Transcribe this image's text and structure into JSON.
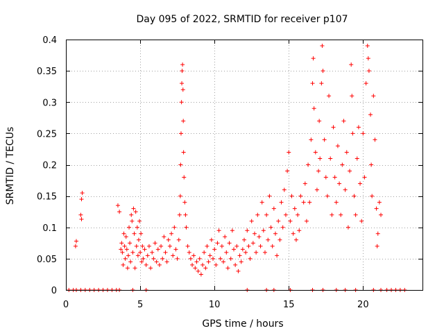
{
  "chart_data": {
    "type": "scatter",
    "title": "Day 095 of 2022, SRMTID for receiver p107",
    "xlabel": "GPS time / hours",
    "ylabel": "SRMTID / TECUs",
    "xlim": [
      0,
      24
    ],
    "ylim": [
      0,
      0.4
    ],
    "xticks": [
      0,
      5,
      10,
      15,
      20
    ],
    "xtick_labels": [
      "0",
      "5",
      "10",
      "15",
      "20"
    ],
    "yticks": [
      0,
      0.05,
      0.1,
      0.15,
      0.2,
      0.25,
      0.3,
      0.35,
      0.4
    ],
    "ytick_labels": [
      "0",
      "0.05",
      "0.1",
      "0.15",
      "0.2",
      "0.25",
      "0.3",
      "0.35",
      "0.4"
    ],
    "grid": true,
    "marker": "plus",
    "color": "#ff0000",
    "series": [
      {
        "name": "SRMTID",
        "points": [
          [
            0.2,
            0
          ],
          [
            0.5,
            0
          ],
          [
            0.7,
            0
          ],
          [
            1.0,
            0
          ],
          [
            1.3,
            0
          ],
          [
            1.6,
            0
          ],
          [
            1.9,
            0
          ],
          [
            2.2,
            0
          ],
          [
            2.5,
            0
          ],
          [
            2.8,
            0
          ],
          [
            3.1,
            0
          ],
          [
            3.4,
            0
          ],
          [
            3.6,
            0
          ],
          [
            4.5,
            0
          ],
          [
            5.4,
            0
          ],
          [
            12.2,
            0
          ],
          [
            13.5,
            0
          ],
          [
            14.0,
            0
          ],
          [
            15.1,
            0
          ],
          [
            16.6,
            0
          ],
          [
            17.3,
            0
          ],
          [
            18.2,
            0
          ],
          [
            18.8,
            0
          ],
          [
            19.5,
            0
          ],
          [
            20.7,
            0
          ],
          [
            21.2,
            0
          ],
          [
            21.6,
            0
          ],
          [
            21.9,
            0
          ],
          [
            22.2,
            0
          ],
          [
            22.5,
            0
          ],
          [
            22.8,
            0
          ],
          [
            0.65,
            0.07
          ],
          [
            0.7,
            0.078
          ],
          [
            1.0,
            0.12
          ],
          [
            1.05,
            0.113
          ],
          [
            1.05,
            0.145
          ],
          [
            1.1,
            0.155
          ],
          [
            3.5,
            0.135
          ],
          [
            3.6,
            0.125
          ],
          [
            3.7,
            0.065
          ],
          [
            3.75,
            0.075
          ],
          [
            3.8,
            0.06
          ],
          [
            3.85,
            0.04
          ],
          [
            3.9,
            0.09
          ],
          [
            3.95,
            0.07
          ],
          [
            4.0,
            0.05
          ],
          [
            4.05,
            0.085
          ],
          [
            4.1,
            0.065
          ],
          [
            4.15,
            0.035
          ],
          [
            4.2,
            0.055
          ],
          [
            4.25,
            0.1
          ],
          [
            4.3,
            0.075
          ],
          [
            4.35,
            0.045
          ],
          [
            4.4,
            0.12
          ],
          [
            4.45,
            0.11
          ],
          [
            4.5,
            0.06
          ],
          [
            4.55,
            0.13
          ],
          [
            4.6,
            0.09
          ],
          [
            4.65,
            0.035
          ],
          [
            4.7,
            0.125
          ],
          [
            4.75,
            0.07
          ],
          [
            4.8,
            0.1
          ],
          [
            4.85,
            0.055
          ],
          [
            4.9,
            0.08
          ],
          [
            4.95,
            0.11
          ],
          [
            5.0,
            0.06
          ],
          [
            5.05,
            0.09
          ],
          [
            5.1,
            0.045
          ],
          [
            5.15,
            0.07
          ],
          [
            5.2,
            0.05
          ],
          [
            5.3,
            0.065
          ],
          [
            5.4,
            0.04
          ],
          [
            5.5,
            0.055
          ],
          [
            5.6,
            0.07
          ],
          [
            5.7,
            0.035
          ],
          [
            5.8,
            0.06
          ],
          [
            5.9,
            0.05
          ],
          [
            6.0,
            0.075
          ],
          [
            6.1,
            0.045
          ],
          [
            6.2,
            0.065
          ],
          [
            6.3,
            0.04
          ],
          [
            6.4,
            0.07
          ],
          [
            6.5,
            0.05
          ],
          [
            6.6,
            0.085
          ],
          [
            6.7,
            0.06
          ],
          [
            6.8,
            0.045
          ],
          [
            6.9,
            0.08
          ],
          [
            7.0,
            0.07
          ],
          [
            7.1,
            0.09
          ],
          [
            7.2,
            0.055
          ],
          [
            7.3,
            0.1
          ],
          [
            7.4,
            0.065
          ],
          [
            7.5,
            0.05
          ],
          [
            7.6,
            0.08
          ],
          [
            7.65,
            0.12
          ],
          [
            7.7,
            0.15
          ],
          [
            7.72,
            0.2
          ],
          [
            7.75,
            0.25
          ],
          [
            7.78,
            0.3
          ],
          [
            7.8,
            0.33
          ],
          [
            7.82,
            0.35
          ],
          [
            7.85,
            0.36
          ],
          [
            7.88,
            0.32
          ],
          [
            7.9,
            0.27
          ],
          [
            7.92,
            0.22
          ],
          [
            7.95,
            0.18
          ],
          [
            8.0,
            0.14
          ],
          [
            8.05,
            0.12
          ],
          [
            8.1,
            0.1
          ],
          [
            8.2,
            0.07
          ],
          [
            8.3,
            0.06
          ],
          [
            8.4,
            0.05
          ],
          [
            8.5,
            0.04
          ],
          [
            8.6,
            0.055
          ],
          [
            8.7,
            0.035
          ],
          [
            8.8,
            0.045
          ],
          [
            8.9,
            0.03
          ],
          [
            9.0,
            0.05
          ],
          [
            9.1,
            0.025
          ],
          [
            9.2,
            0.04
          ],
          [
            9.3,
            0.06
          ],
          [
            9.4,
            0.035
          ],
          [
            9.5,
            0.07
          ],
          [
            9.6,
            0.045
          ],
          [
            9.7,
            0.055
          ],
          [
            9.8,
            0.08
          ],
          [
            9.9,
            0.05
          ],
          [
            10.0,
            0.065
          ],
          [
            10.1,
            0.04
          ],
          [
            10.2,
            0.075
          ],
          [
            10.3,
            0.095
          ],
          [
            10.4,
            0.05
          ],
          [
            10.5,
            0.07
          ],
          [
            10.6,
            0.045
          ],
          [
            10.7,
            0.085
          ],
          [
            10.8,
            0.06
          ],
          [
            10.9,
            0.035
          ],
          [
            11.0,
            0.075
          ],
          [
            11.1,
            0.05
          ],
          [
            11.2,
            0.095
          ],
          [
            11.3,
            0.065
          ],
          [
            11.4,
            0.04
          ],
          [
            11.5,
            0.07
          ],
          [
            11.6,
            0.03
          ],
          [
            11.7,
            0.055
          ],
          [
            11.8,
            0.045
          ],
          [
            11.9,
            0.065
          ],
          [
            12.0,
            0.08
          ],
          [
            12.1,
            0.06
          ],
          [
            12.2,
            0.095
          ],
          [
            12.3,
            0.07
          ],
          [
            12.4,
            0.05
          ],
          [
            12.5,
            0.11
          ],
          [
            12.6,
            0.075
          ],
          [
            12.7,
            0.09
          ],
          [
            12.8,
            0.06
          ],
          [
            12.9,
            0.12
          ],
          [
            13.0,
            0.085
          ],
          [
            13.1,
            0.07
          ],
          [
            13.2,
            0.14
          ],
          [
            13.3,
            0.095
          ],
          [
            13.4,
            0.06
          ],
          [
            13.5,
            0.12
          ],
          [
            13.6,
            0.08
          ],
          [
            13.7,
            0.15
          ],
          [
            13.8,
            0.1
          ],
          [
            13.9,
            0.07
          ],
          [
            14.0,
            0.13
          ],
          [
            14.1,
            0.09
          ],
          [
            14.2,
            0.055
          ],
          [
            14.3,
            0.11
          ],
          [
            14.4,
            0.08
          ],
          [
            14.5,
            0.14
          ],
          [
            14.6,
            0.1
          ],
          [
            14.7,
            0.16
          ],
          [
            14.8,
            0.12
          ],
          [
            14.9,
            0.19
          ],
          [
            15.0,
            0.22
          ],
          [
            15.1,
            0.11
          ],
          [
            15.2,
            0.15
          ],
          [
            15.3,
            0.09
          ],
          [
            15.4,
            0.13
          ],
          [
            15.5,
            0.08
          ],
          [
            15.6,
            0.12
          ],
          [
            15.7,
            0.095
          ],
          [
            15.8,
            0.15
          ],
          [
            16.0,
            0.14
          ],
          [
            16.1,
            0.17
          ],
          [
            16.2,
            0.11
          ],
          [
            16.3,
            0.2
          ],
          [
            16.4,
            0.14
          ],
          [
            16.5,
            0.24
          ],
          [
            16.6,
            0.33
          ],
          [
            16.65,
            0.37
          ],
          [
            16.7,
            0.29
          ],
          [
            16.8,
            0.22
          ],
          [
            16.9,
            0.16
          ],
          [
            17.0,
            0.19
          ],
          [
            17.05,
            0.27
          ],
          [
            17.1,
            0.21
          ],
          [
            17.2,
            0.33
          ],
          [
            17.25,
            0.39
          ],
          [
            17.3,
            0.35
          ],
          [
            17.4,
            0.24
          ],
          [
            17.5,
            0.18
          ],
          [
            17.6,
            0.15
          ],
          [
            17.7,
            0.31
          ],
          [
            17.8,
            0.21
          ],
          [
            17.9,
            0.12
          ],
          [
            18.0,
            0.26
          ],
          [
            18.1,
            0.18
          ],
          [
            18.2,
            0.14
          ],
          [
            18.3,
            0.23
          ],
          [
            18.4,
            0.17
          ],
          [
            18.5,
            0.12
          ],
          [
            18.6,
            0.2
          ],
          [
            18.7,
            0.27
          ],
          [
            18.8,
            0.16
          ],
          [
            18.9,
            0.22
          ],
          [
            19.0,
            0.1
          ],
          [
            19.1,
            0.19
          ],
          [
            19.2,
            0.36
          ],
          [
            19.25,
            0.31
          ],
          [
            19.3,
            0.25
          ],
          [
            19.4,
            0.15
          ],
          [
            19.5,
            0.12
          ],
          [
            19.6,
            0.21
          ],
          [
            19.7,
            0.26
          ],
          [
            19.8,
            0.17
          ],
          [
            19.9,
            0.11
          ],
          [
            20.0,
            0.25
          ],
          [
            20.1,
            0.18
          ],
          [
            20.2,
            0.33
          ],
          [
            20.3,
            0.39
          ],
          [
            20.35,
            0.37
          ],
          [
            20.4,
            0.35
          ],
          [
            20.5,
            0.28
          ],
          [
            20.55,
            0.2
          ],
          [
            20.6,
            0.15
          ],
          [
            20.7,
            0.31
          ],
          [
            20.8,
            0.24
          ],
          [
            20.9,
            0.13
          ],
          [
            20.95,
            0.07
          ],
          [
            21.0,
            0.09
          ],
          [
            21.1,
            0.14
          ],
          [
            21.2,
            0.12
          ]
        ]
      }
    ]
  }
}
